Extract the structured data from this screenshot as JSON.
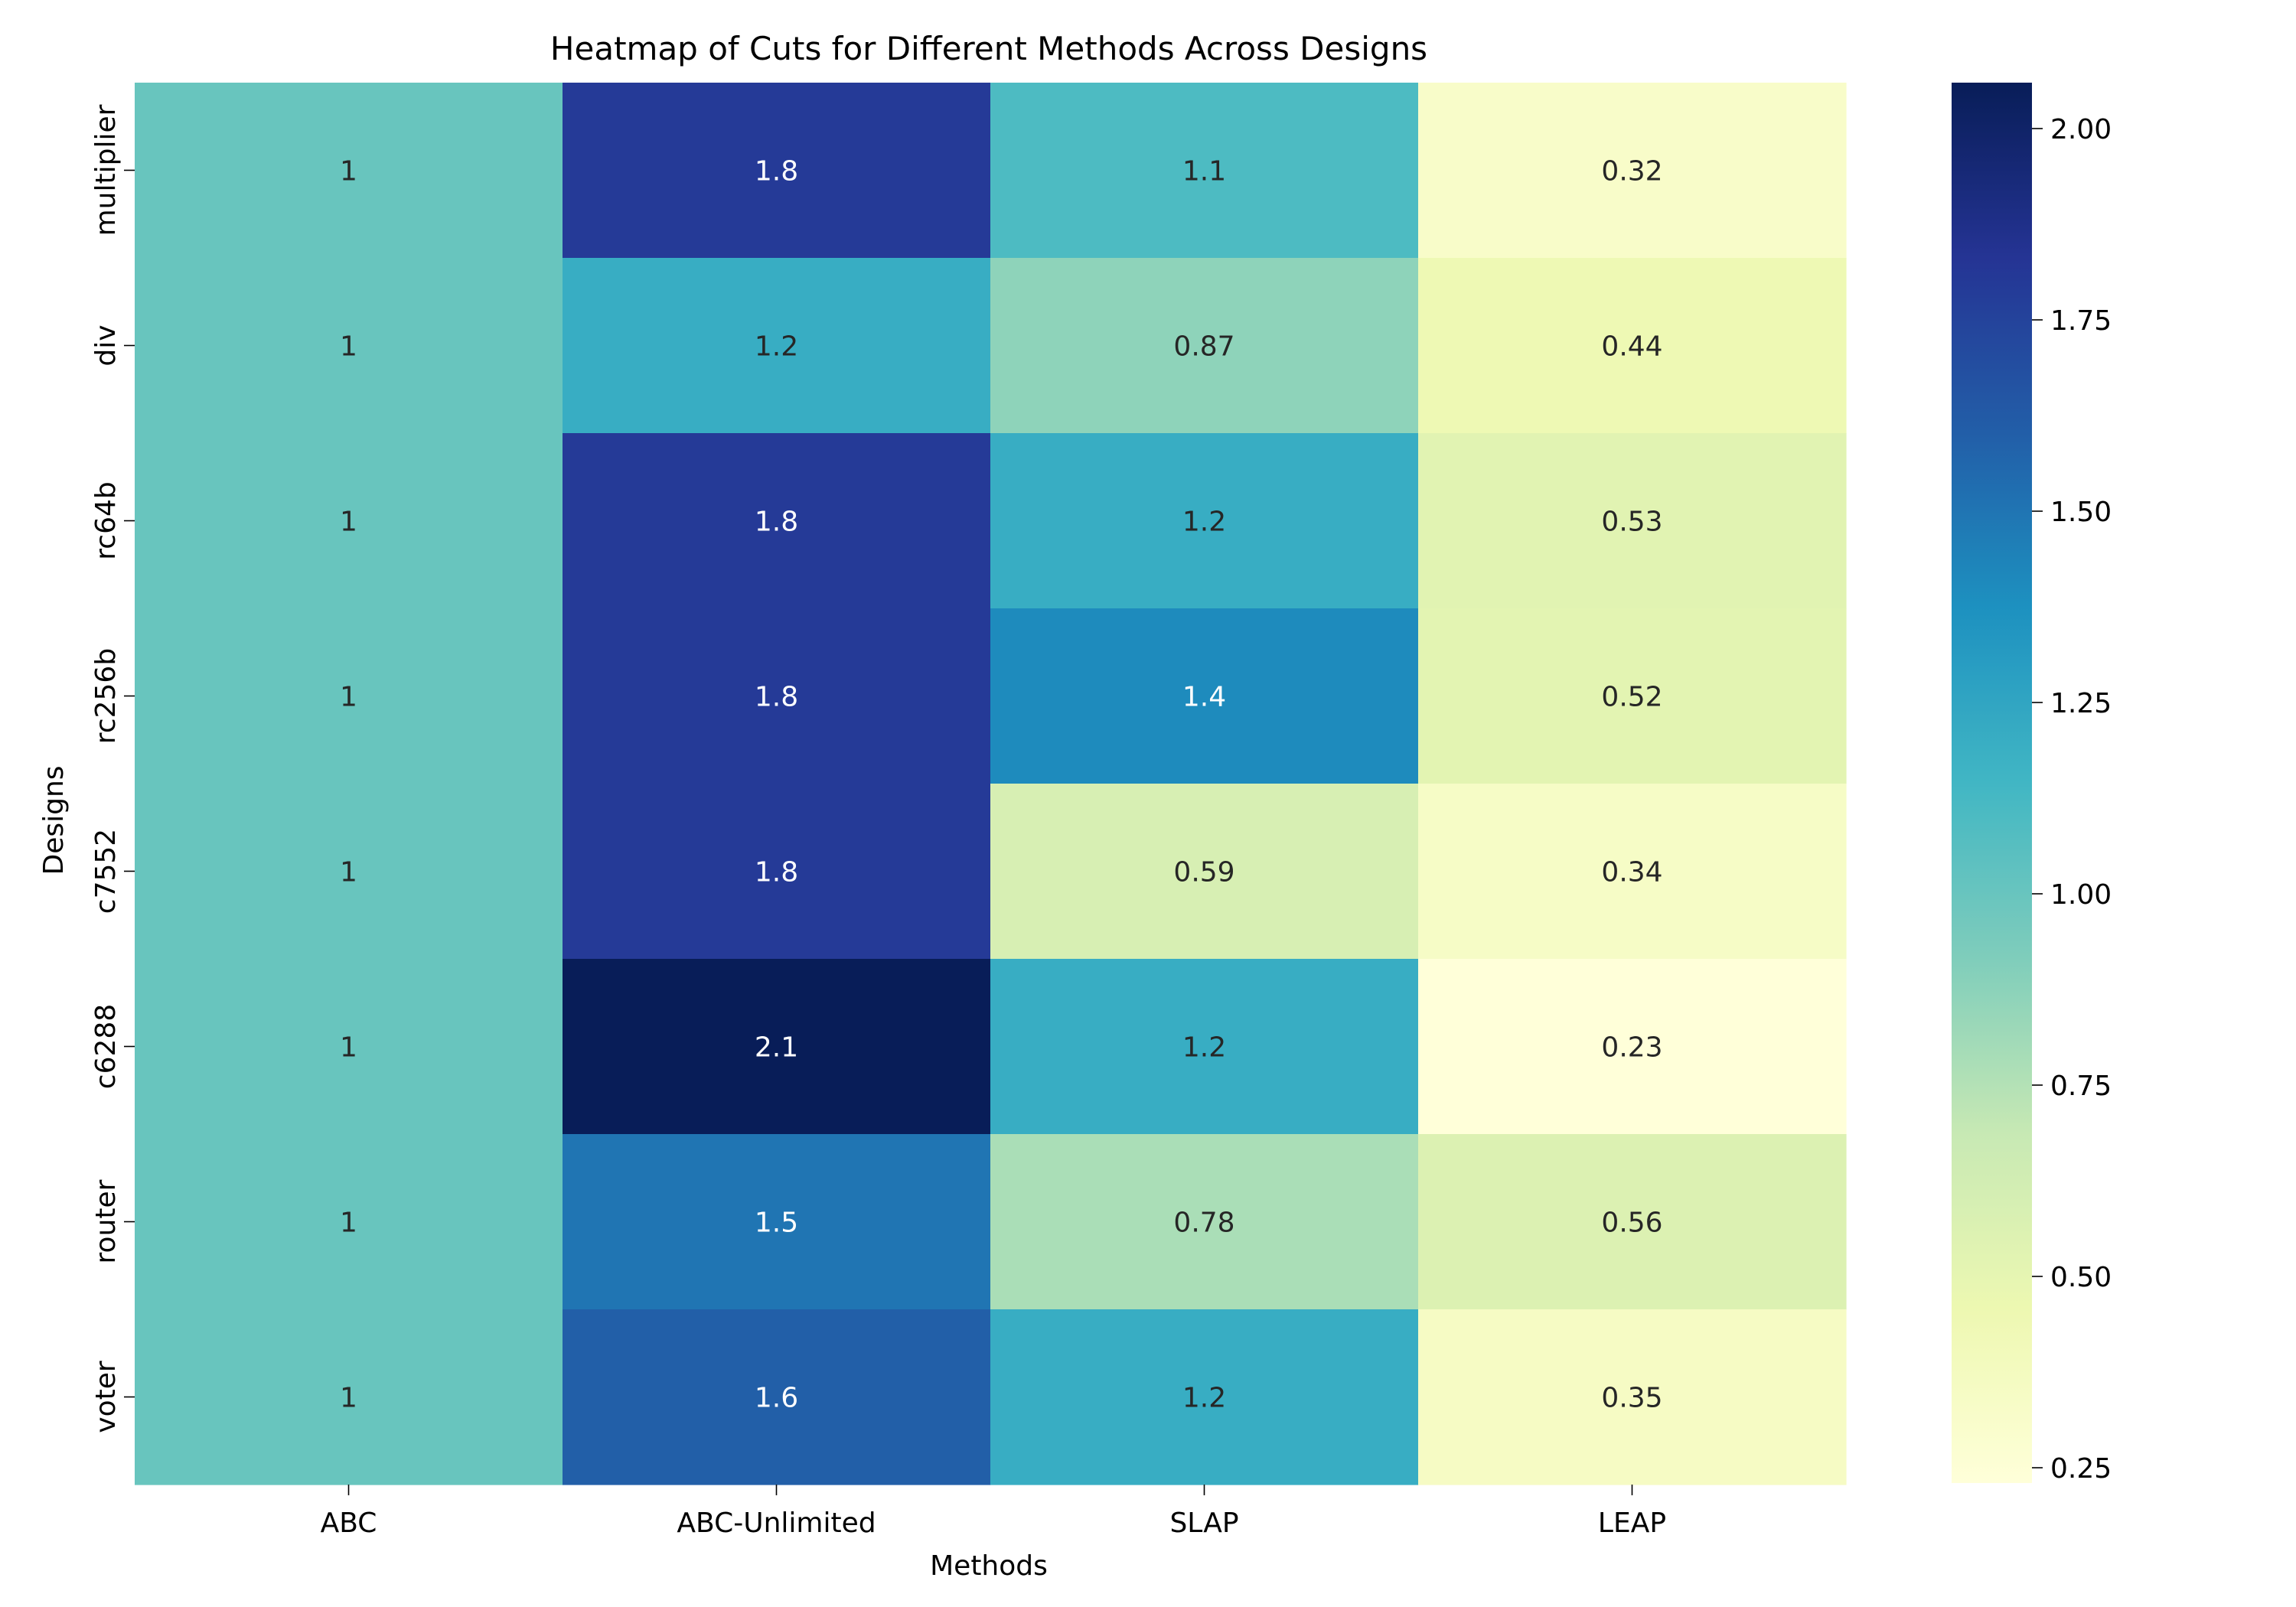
{
  "chart_data": {
    "type": "heatmap",
    "title": "Heatmap of Cuts for Different Methods Across Designs",
    "xlabel": "Methods",
    "ylabel": "Designs",
    "x_categories": [
      "ABC",
      "ABC-Unlimited",
      "SLAP",
      "LEAP"
    ],
    "y_categories": [
      "multiplier",
      "div",
      "rc64b",
      "rc256b",
      "c7552",
      "c6288",
      "router",
      "voter"
    ],
    "values": [
      [
        1,
        1.8,
        1.1,
        0.32
      ],
      [
        1,
        1.2,
        0.87,
        0.44
      ],
      [
        1,
        1.8,
        1.2,
        0.53
      ],
      [
        1,
        1.8,
        1.4,
        0.52
      ],
      [
        1,
        1.8,
        0.59,
        0.34
      ],
      [
        1,
        2.1,
        1.2,
        0.23
      ],
      [
        1,
        1.5,
        0.78,
        0.56
      ],
      [
        1,
        1.6,
        1.2,
        0.35
      ]
    ],
    "colorbar": {
      "range": [
        0.23,
        2.06
      ],
      "ticks": [
        0.25,
        0.5,
        0.75,
        1.0,
        1.25,
        1.5,
        1.75,
        2.0
      ],
      "tick_labels": [
        "0.25",
        "0.50",
        "0.75",
        "1.00",
        "1.25",
        "1.50",
        "1.75",
        "2.00"
      ],
      "colormap": "YlGnBu"
    }
  }
}
